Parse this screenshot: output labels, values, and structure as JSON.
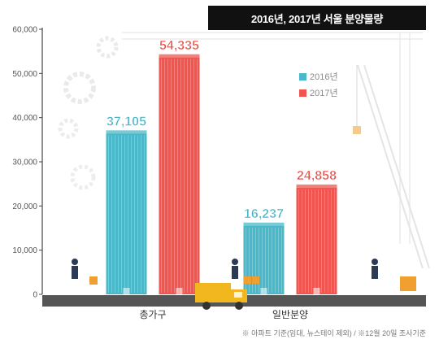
{
  "title": "2016년, 2017년 서울 분양물량",
  "footnote": "※ 아파트 기준(임대, 뉴스테이 제외) / ※12월 20일 조사기준",
  "colors": {
    "s2016": "#4bb8c9",
    "s2017": "#f0564f",
    "axis": "#444444",
    "label2016": "#47b5c6",
    "label2017": "#ee4a44"
  },
  "chart_data": {
    "type": "bar",
    "title": "2016년, 2017년 서울 분양물량",
    "categories": [
      "총가구",
      "일반분양"
    ],
    "series": [
      {
        "name": "2016년",
        "values": [
          37105,
          16237
        ],
        "labels": [
          "37,105",
          "16,237"
        ]
      },
      {
        "name": "2017년",
        "values": [
          54335,
          24858
        ],
        "labels": [
          "54,335",
          "24,858"
        ]
      }
    ],
    "yticks": [
      "0",
      "10,000",
      "20,000",
      "30,000",
      "40,000",
      "50,000",
      "60,000"
    ],
    "ylim": [
      0,
      60000
    ],
    "legend_position": "top-right",
    "grid": false
  }
}
